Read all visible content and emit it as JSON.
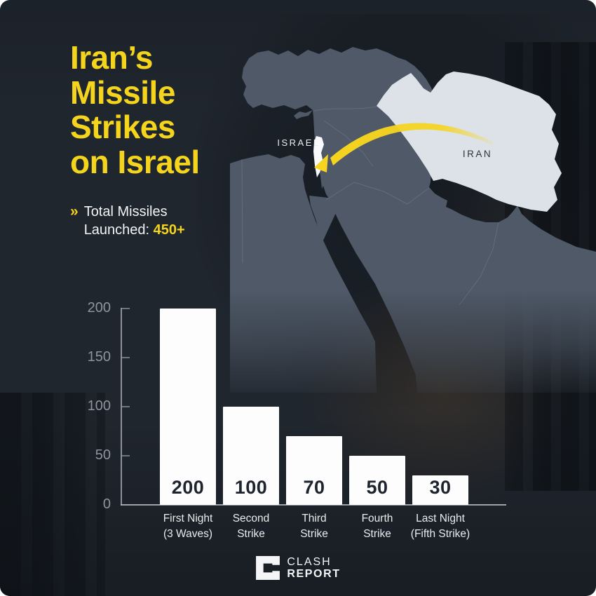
{
  "title": {
    "lines": [
      "Iran’s",
      "Missile",
      "Strikes",
      "on Israel"
    ]
  },
  "subtitle": {
    "chevron": "»",
    "line1": "Total Missiles",
    "line2_prefix": "Launched:",
    "value": "450+"
  },
  "map": {
    "israel_label": "ISRAEL",
    "iran_label": "IRAN"
  },
  "chart_data": {
    "type": "bar",
    "title": "",
    "xlabel": "",
    "ylabel": "",
    "categories": [
      [
        "First Night",
        "(3 Waves)"
      ],
      [
        "Second",
        "Strike"
      ],
      [
        "Third",
        "Strike"
      ],
      [
        "Fourth",
        "Strike"
      ],
      [
        "Last Night",
        "(Fifth Strike)"
      ]
    ],
    "values": [
      200,
      100,
      70,
      50,
      30
    ],
    "yticks": [
      200,
      150,
      100,
      50,
      0
    ],
    "ylim": [
      0,
      200
    ],
    "grid": false,
    "legend": false,
    "bar_color": "#ffffff"
  },
  "footer": {
    "brand_line1": "CLASH",
    "brand_line2": "REPORT"
  },
  "colors": {
    "background": "#20262e",
    "accent_yellow": "#f5d41d",
    "bar_fill": "#fdfdfe",
    "value_dark": "#1d242e",
    "tick_gray": "#8e959e",
    "axis": "#b3b8bf",
    "map_land": "#4f5967",
    "map_border": "#8792a2",
    "map_iran": "#dde2e8",
    "map_israel": "#f8fafc",
    "arrow_yellow": "#f6d41f",
    "text_light": "#eef1f3"
  }
}
